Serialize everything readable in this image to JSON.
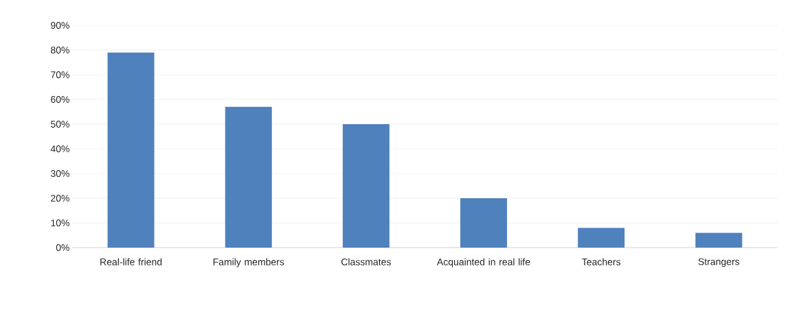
{
  "chart_data": {
    "type": "bar",
    "categories": [
      "Real-life  friend",
      "Family members",
      "Classmates",
      "Acquainted in real life",
      "Teachers",
      "Strangers"
    ],
    "values": [
      79,
      57,
      50,
      20,
      8,
      6
    ],
    "color": "#4f81bd",
    "ylim": [
      0,
      90
    ],
    "yticks": [
      {
        "value": 0,
        "label": "0%"
      },
      {
        "value": 10,
        "label": "10%"
      },
      {
        "value": 20,
        "label": "20%"
      },
      {
        "value": 30,
        "label": "30%"
      },
      {
        "value": 40,
        "label": "40%"
      },
      {
        "value": 50,
        "label": "50%"
      },
      {
        "value": 60,
        "label": "60%"
      },
      {
        "value": 70,
        "label": "70%"
      },
      {
        "value": 80,
        "label": "80%"
      },
      {
        "value": 90,
        "label": "90%"
      }
    ],
    "grid": "y"
  }
}
